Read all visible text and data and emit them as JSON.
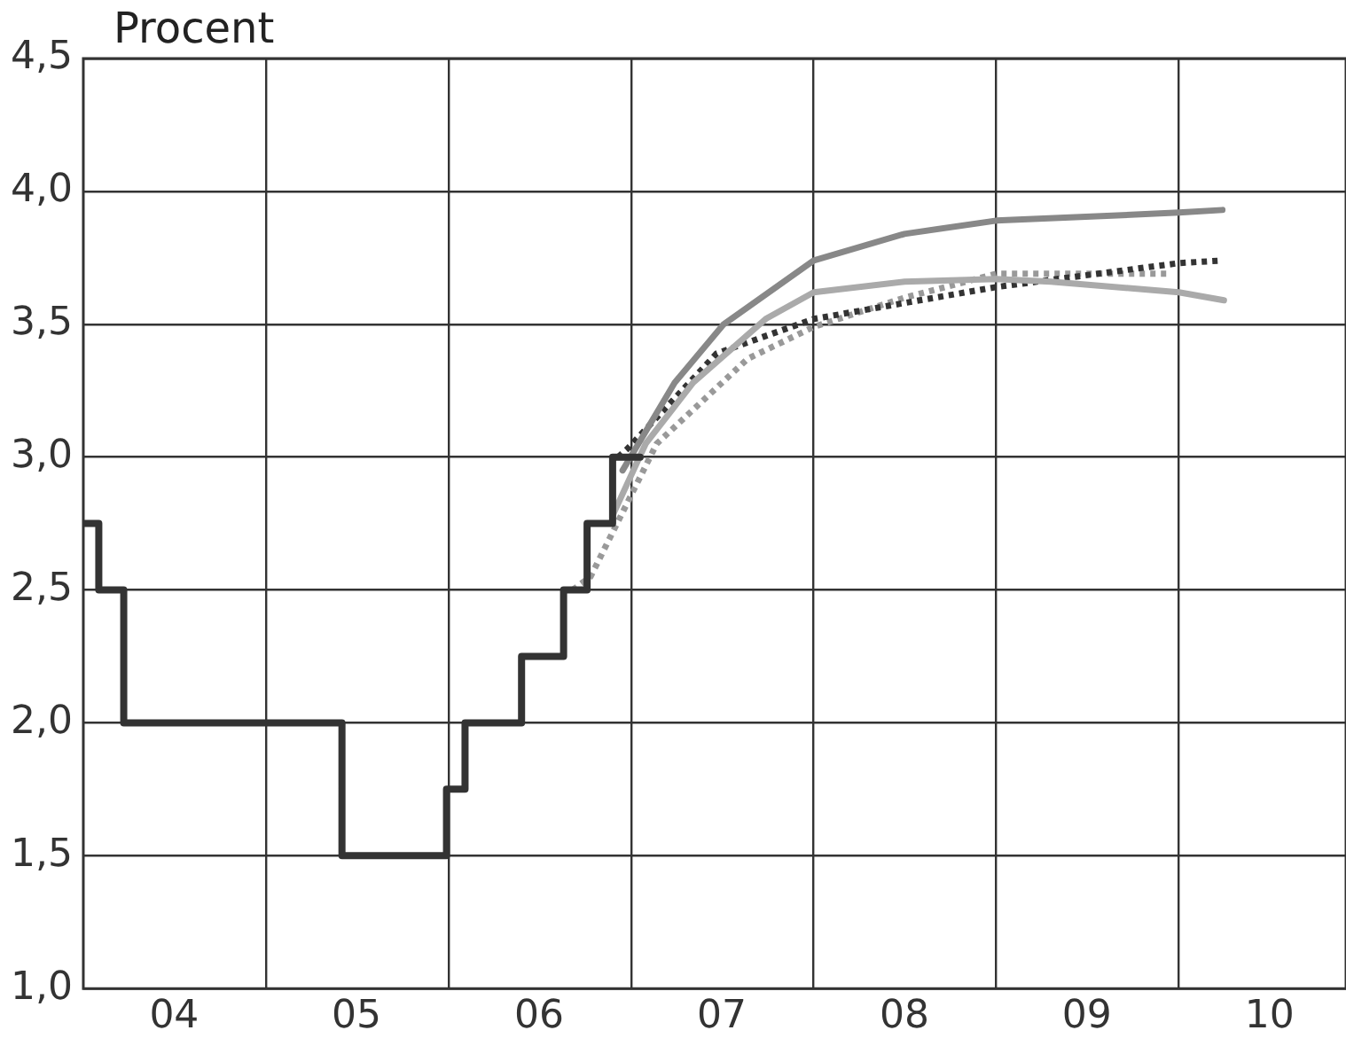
{
  "chart_data": {
    "type": "line",
    "ylabel": "Procent",
    "xlim": [
      "2004-01",
      "2010-12"
    ],
    "xticks": [
      {
        "value": "2005-01",
        "label": null
      },
      {
        "value": "2004-07",
        "label": "04"
      },
      {
        "value": "2006-01",
        "label": null
      },
      {
        "value": "2005-07",
        "label": "05"
      },
      {
        "value": "2007-01",
        "label": null
      },
      {
        "value": "2006-07",
        "label": "06"
      },
      {
        "value": "2008-01",
        "label": null
      },
      {
        "value": "2007-07",
        "label": "07"
      },
      {
        "value": "2009-01",
        "label": null
      },
      {
        "value": "2008-07",
        "label": "08"
      },
      {
        "value": "2010-01",
        "label": null
      },
      {
        "value": "2009-07",
        "label": "09"
      },
      {
        "value": "2010-07",
        "label": "10"
      }
    ],
    "ylim": [
      1,
      4.5
    ],
    "yticks": [
      {
        "value": 1,
        "label": "1,0"
      },
      {
        "value": 1.5,
        "label": "1,5"
      },
      {
        "value": 2,
        "label": "2,0"
      },
      {
        "value": 2.5,
        "label": "2,5"
      },
      {
        "value": 3,
        "label": "3,0"
      },
      {
        "value": 3.5,
        "label": "3,5"
      },
      {
        "value": 4,
        "label": "4,0"
      },
      {
        "value": 4.5,
        "label": "4,5"
      }
    ],
    "grid": true,
    "legend": false,
    "marker": "none",
    "series": [
      {
        "type": "step",
        "color": "#333333",
        "line_style": "solid",
        "x": [
          "2004-01",
          "2004-02",
          "2004-03-22",
          "2005-06-02",
          "2005-12-28",
          "2006-02-03",
          "2006-05-27",
          "2006-08-19",
          "2006-10-05",
          "2006-11-25",
          "2007-01-19"
        ],
        "values": [
          2.75,
          2.5,
          2.0,
          1.5,
          1.75,
          2.0,
          2.25,
          2.5,
          2.75,
          3.0,
          3.0
        ]
      },
      {
        "color": "#888888",
        "line_style": "solid",
        "x": [
          "2006-12-15",
          "2007-03-29",
          "2007-07-05",
          "2008-01",
          "2008-07",
          "2009-01",
          "2010-01",
          "2010-03-29"
        ],
        "values": [
          2.95,
          3.28,
          3.5,
          3.74,
          3.84,
          3.89,
          3.92,
          3.93
        ]
      },
      {
        "color": "#aaaaaa",
        "line_style": "solid",
        "x": [
          "2006-11-25",
          "2007-01-30",
          "2007-05-05",
          "2007-09-27",
          "2008-01",
          "2008-07",
          "2009-01",
          "2009-04-20",
          "2010-01",
          "2010-04-01"
        ],
        "values": [
          2.78,
          3.05,
          3.28,
          3.52,
          3.62,
          3.66,
          3.67,
          3.66,
          3.62,
          3.59
        ]
      },
      {
        "color": "#333333",
        "line_style": "dotted",
        "x": [
          "2006-12-06",
          "2006-12-24",
          "2007-06-21",
          "2008-01",
          "2008-07",
          "2009-01",
          "2010-01",
          "2010-03-29"
        ],
        "values": [
          3.0,
          3.03,
          3.39,
          3.52,
          3.58,
          3.64,
          3.73,
          3.74
        ]
      },
      {
        "color": "#999999",
        "line_style": "dotted",
        "x": [
          "2006-09-06",
          "2006-10-12",
          "2007-02-21",
          "2007-08-22",
          "2008-01",
          "2008-07",
          "2009-01",
          "2009-12-13"
        ],
        "values": [
          2.5,
          2.55,
          3.05,
          3.37,
          3.49,
          3.6,
          3.69,
          3.69
        ]
      }
    ]
  }
}
